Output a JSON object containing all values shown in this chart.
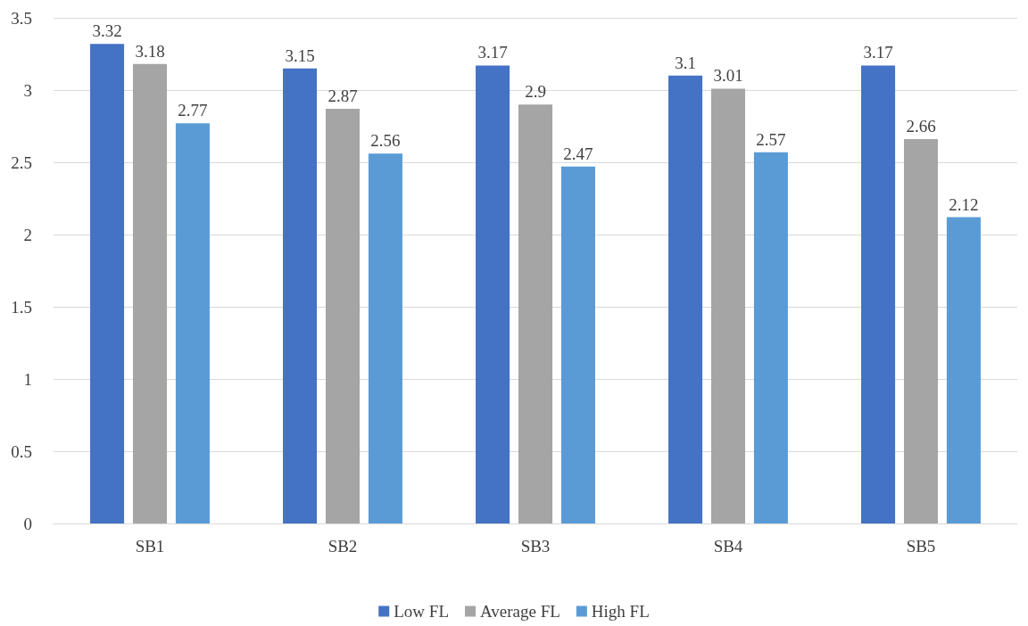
{
  "chart_data": {
    "type": "bar",
    "categories": [
      "SB1",
      "SB2",
      "SB3",
      "SB4",
      "SB5"
    ],
    "series": [
      {
        "name": "Low FL",
        "color": "#4472c4",
        "values": [
          3.32,
          3.15,
          3.17,
          3.1,
          3.17
        ]
      },
      {
        "name": "Average FL",
        "color": "#a5a5a5",
        "values": [
          3.18,
          2.87,
          2.9,
          3.01,
          2.66
        ]
      },
      {
        "name": "High FL",
        "color": "#5b9bd5",
        "values": [
          2.77,
          2.56,
          2.47,
          2.57,
          2.12
        ]
      }
    ],
    "ylim": [
      0,
      3.5
    ],
    "yticks": [
      0,
      0.5,
      1,
      1.5,
      2,
      2.5,
      3,
      3.5
    ],
    "grid": "y",
    "legend": "bottom",
    "data_labels": true
  }
}
